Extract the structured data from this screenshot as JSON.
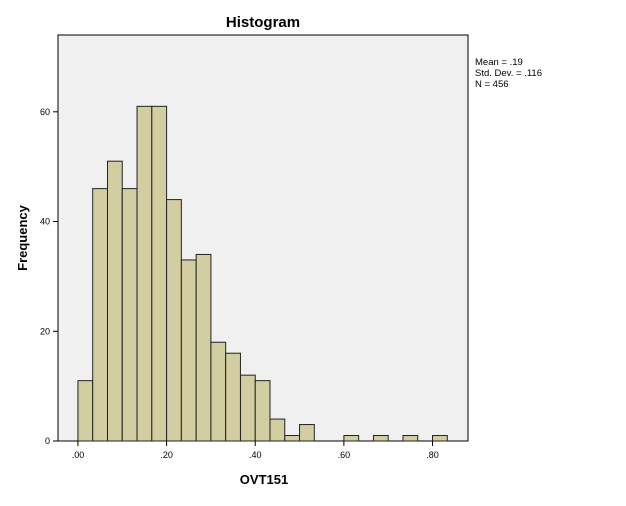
{
  "chart_data": {
    "type": "bar",
    "title": "Histogram",
    "xlabel": "OVT151",
    "ylabel": "Frequency",
    "bin_width": 0.0333,
    "bins": [
      {
        "start": 0.0,
        "count": 11
      },
      {
        "start": 0.0333,
        "count": 46
      },
      {
        "start": 0.0667,
        "count": 51
      },
      {
        "start": 0.1,
        "count": 46
      },
      {
        "start": 0.1333,
        "count": 61
      },
      {
        "start": 0.1667,
        "count": 61
      },
      {
        "start": 0.2,
        "count": 44
      },
      {
        "start": 0.2333,
        "count": 33
      },
      {
        "start": 0.2667,
        "count": 34
      },
      {
        "start": 0.3,
        "count": 18
      },
      {
        "start": 0.3333,
        "count": 16
      },
      {
        "start": 0.3667,
        "count": 12
      },
      {
        "start": 0.4,
        "count": 11
      },
      {
        "start": 0.4333,
        "count": 4
      },
      {
        "start": 0.4667,
        "count": 1
      },
      {
        "start": 0.5,
        "count": 3
      },
      {
        "start": 0.5333,
        "count": 0
      },
      {
        "start": 0.5667,
        "count": 0
      },
      {
        "start": 0.6,
        "count": 1
      },
      {
        "start": 0.6333,
        "count": 0
      },
      {
        "start": 0.6667,
        "count": 1
      },
      {
        "start": 0.7,
        "count": 0
      },
      {
        "start": 0.7333,
        "count": 1
      },
      {
        "start": 0.7667,
        "count": 0
      },
      {
        "start": 0.8,
        "count": 1
      }
    ],
    "xlim": [
      -0.045,
      0.88
    ],
    "ylim": [
      0,
      74
    ],
    "x_ticks": [
      {
        "value": 0.0,
        "label": ".00"
      },
      {
        "value": 0.2,
        "label": ".20"
      },
      {
        "value": 0.4,
        "label": ".40"
      },
      {
        "value": 0.6,
        "label": ".60"
      },
      {
        "value": 0.8,
        "label": ".80"
      }
    ],
    "y_ticks": [
      {
        "value": 0,
        "label": "0"
      },
      {
        "value": 20,
        "label": "20"
      },
      {
        "value": 40,
        "label": "40"
      },
      {
        "value": 60,
        "label": "60"
      }
    ],
    "stats": [
      "Mean = .19",
      "Std. Dev. = .116",
      "N = 456"
    ],
    "grid": false,
    "legend_position": "top-right",
    "colors": {
      "bar_fill": "#d3cea1",
      "bar_stroke": "#222222",
      "plot_background": "#f0f0f0",
      "page_background": "#ffffff"
    }
  }
}
